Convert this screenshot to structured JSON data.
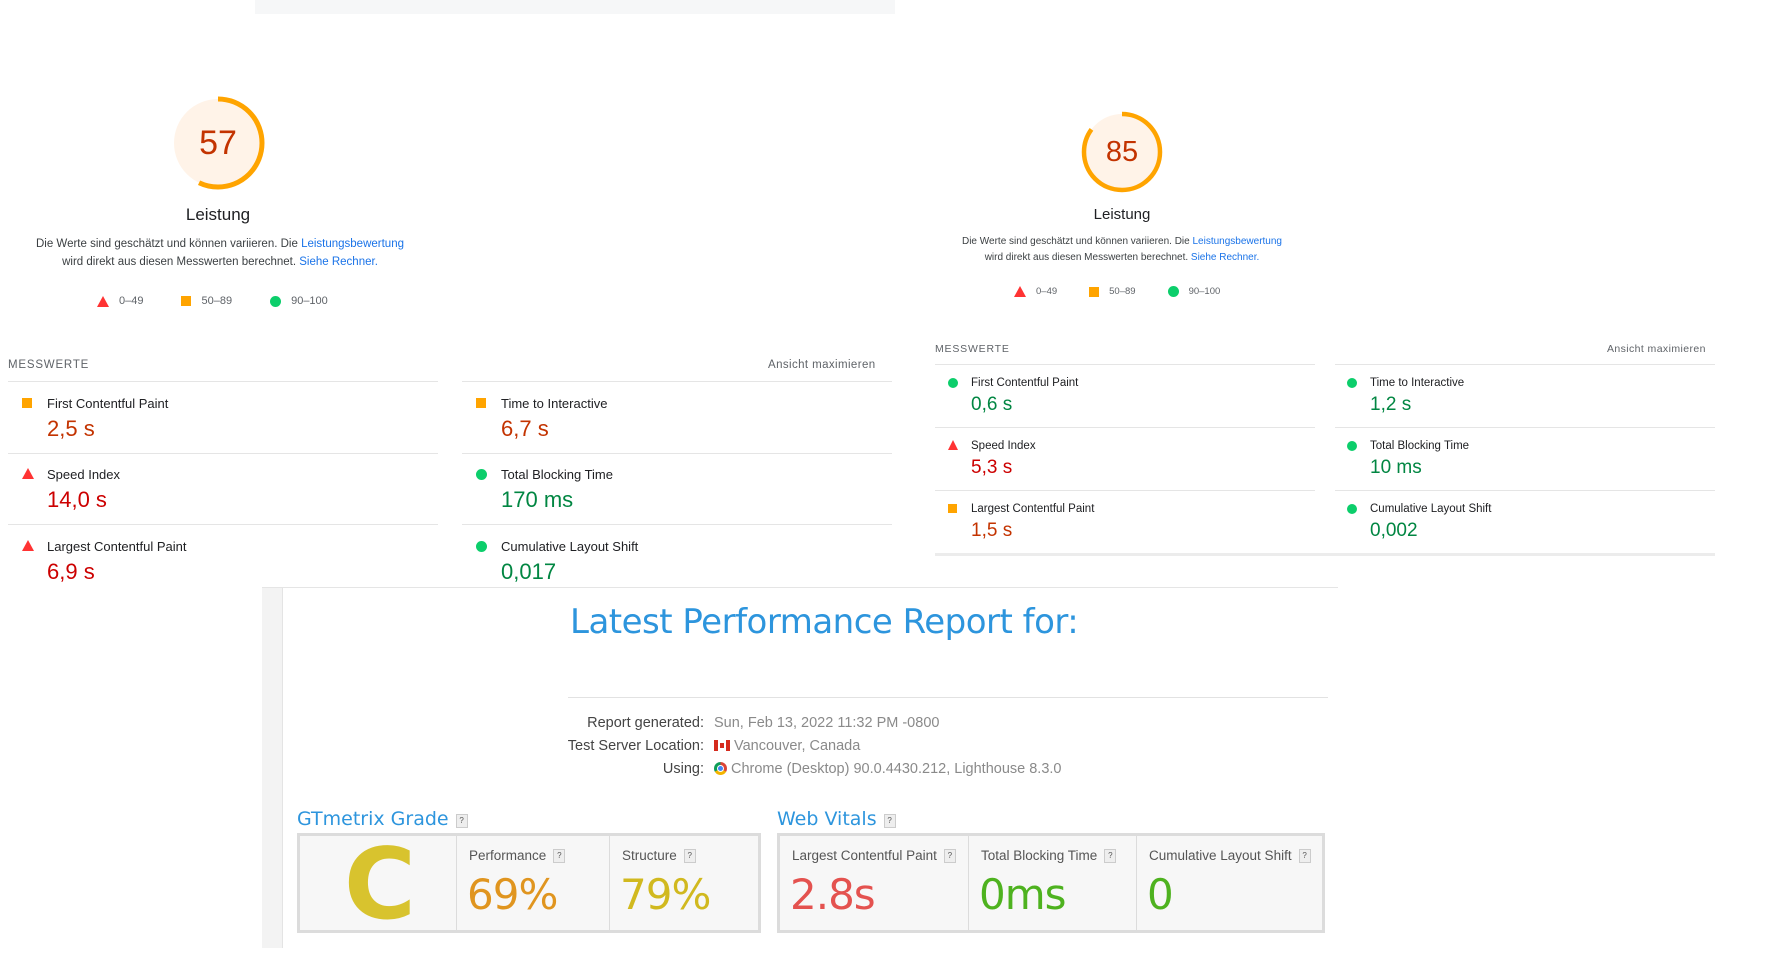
{
  "panel_left": {
    "score": "57",
    "category": "Leistung",
    "desc_part1": "Die Werte sind geschätzt und können variieren. Die ",
    "desc_link1": "Leistungsbewertung",
    "desc_part2": "wird direkt aus diesen Messwerten berechnet. ",
    "desc_link2": "Siehe Rechner.",
    "legend": [
      "0–49",
      "50–89",
      "90–100"
    ],
    "section_title": "MESSWERTE",
    "maximize": "Ansicht maximieren",
    "metrics": [
      {
        "label": "First Contentful Paint",
        "value": "2,5 s",
        "status": "average"
      },
      {
        "label": "Time to Interactive",
        "value": "6,7 s",
        "status": "average"
      },
      {
        "label": "Speed Index",
        "value": "14,0 s",
        "status": "fail"
      },
      {
        "label": "Total Blocking Time",
        "value": "170 ms",
        "status": "pass"
      },
      {
        "label": "Largest Contentful Paint",
        "value": "6,9 s",
        "status": "fail"
      },
      {
        "label": "Cumulative Layout Shift",
        "value": "0,017",
        "status": "pass"
      }
    ]
  },
  "panel_right": {
    "score": "85",
    "category": "Leistung",
    "desc_part1": "Die Werte sind geschätzt und können variieren. Die ",
    "desc_link1": "Leistungsbewertung",
    "desc_part2": "wird direkt aus diesen Messwerten berechnet. ",
    "desc_link2": "Siehe Rechner.",
    "legend": [
      "0–49",
      "50–89",
      "90–100"
    ],
    "section_title": "MESSWERTE",
    "maximize": "Ansicht maximieren",
    "metrics": [
      {
        "label": "First Contentful Paint",
        "value": "0,6 s",
        "status": "pass"
      },
      {
        "label": "Time to Interactive",
        "value": "1,2 s",
        "status": "pass"
      },
      {
        "label": "Speed Index",
        "value": "5,3 s",
        "status": "fail"
      },
      {
        "label": "Total Blocking Time",
        "value": "10 ms",
        "status": "pass"
      },
      {
        "label": "Largest Contentful Paint",
        "value": "1,5 s",
        "status": "average"
      },
      {
        "label": "Cumulative Layout Shift",
        "value": "0,002",
        "status": "pass"
      }
    ]
  },
  "gtmetrix": {
    "title": "Latest Performance Report for:",
    "info": [
      {
        "key": "Report generated:",
        "value": "Sun, Feb 13, 2022 11:32 PM -0800",
        "icon": ""
      },
      {
        "key": "Test Server Location:",
        "value": "Vancouver, Canada",
        "icon": "canada-flag-icon"
      },
      {
        "key": "Using:",
        "value": "Chrome (Desktop) 90.0.4430.212, Lighthouse 8.3.0",
        "icon": "chrome-icon"
      }
    ],
    "grade_title": "GTmetrix Grade",
    "grade": "C",
    "performance_label": "Performance",
    "performance_value": "69%",
    "structure_label": "Structure",
    "structure_value": "79%",
    "vitals_title": "Web Vitals",
    "lcp_label": "Largest Contentful Paint",
    "lcp_value": "2.8s",
    "tbt_label": "Total Blocking Time",
    "tbt_value": "0ms",
    "cls_label": "Cumulative Layout Shift",
    "cls_value": "0",
    "help_mark": "?",
    "colors": {
      "accent": "#2d95dd",
      "grade": "#d8c32e",
      "perf": "#e0951f",
      "structure": "#d1b91f",
      "lcp": "#e4524f",
      "good": "#4eb21f"
    }
  }
}
